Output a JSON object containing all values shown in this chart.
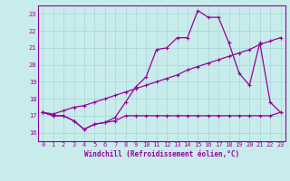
{
  "xlabel": "Windchill (Refroidissement éolien,°C)",
  "background_color": "#c8ecec",
  "grid_color": "#aad4d4",
  "line_color": "#990099",
  "xlim": [
    -0.5,
    23.5
  ],
  "ylim": [
    15.5,
    23.5
  ],
  "yticks": [
    16,
    17,
    18,
    19,
    20,
    21,
    22,
    23
  ],
  "xticks": [
    0,
    1,
    2,
    3,
    4,
    5,
    6,
    7,
    8,
    9,
    10,
    11,
    12,
    13,
    14,
    15,
    16,
    17,
    18,
    19,
    20,
    21,
    22,
    23
  ],
  "line1_x": [
    0,
    1,
    2,
    3,
    4,
    5,
    6,
    7,
    8,
    9,
    10,
    11,
    12,
    13,
    14,
    15,
    16,
    17,
    18,
    19,
    20,
    21,
    22,
    23
  ],
  "line1_y": [
    17.2,
    17.0,
    17.0,
    16.7,
    16.2,
    16.5,
    16.6,
    16.7,
    17.0,
    17.0,
    17.0,
    17.0,
    17.0,
    17.0,
    17.0,
    17.0,
    17.0,
    17.0,
    17.0,
    17.0,
    17.0,
    17.0,
    17.0,
    17.2
  ],
  "line2_x": [
    0,
    1,
    2,
    3,
    4,
    5,
    6,
    7,
    8,
    9,
    10,
    11,
    12,
    13,
    14,
    15,
    16,
    17,
    18,
    19,
    20,
    21,
    22,
    23
  ],
  "line2_y": [
    17.2,
    17.1,
    17.3,
    17.5,
    17.6,
    17.8,
    18.0,
    18.2,
    18.4,
    18.6,
    18.8,
    19.0,
    19.2,
    19.4,
    19.7,
    19.9,
    20.1,
    20.3,
    20.5,
    20.7,
    20.9,
    21.2,
    21.4,
    21.6
  ],
  "line3_x": [
    0,
    1,
    2,
    3,
    4,
    5,
    6,
    7,
    8,
    9,
    10,
    11,
    12,
    13,
    14,
    15,
    16,
    17,
    18,
    19,
    20,
    21,
    22,
    23
  ],
  "line3_y": [
    17.2,
    17.0,
    17.0,
    16.7,
    16.2,
    16.5,
    16.6,
    16.9,
    17.8,
    18.7,
    19.3,
    20.9,
    21.0,
    21.6,
    21.6,
    23.2,
    22.8,
    22.8,
    21.3,
    19.5,
    18.8,
    21.3,
    17.8,
    17.2
  ]
}
